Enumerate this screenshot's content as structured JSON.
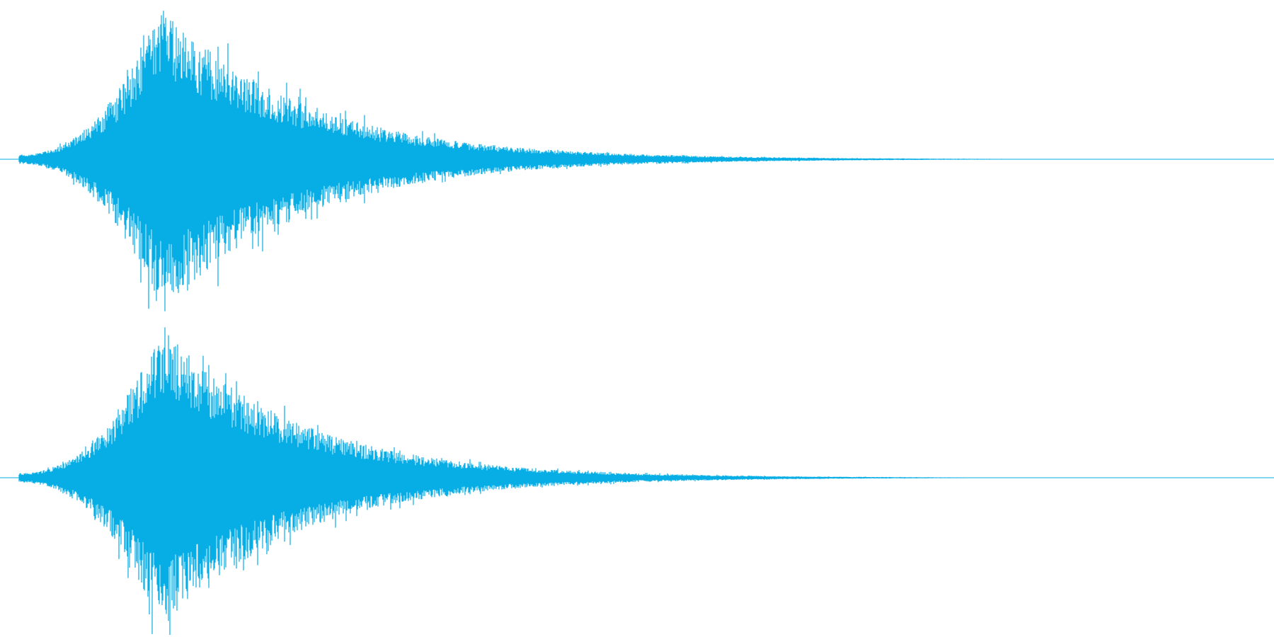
{
  "waveform": {
    "color": "#06aee5",
    "background": "#ffffff",
    "channels": [
      {
        "name": "channel-1",
        "peak_position": 0.13,
        "peak_amplitude": 1.0,
        "attack_start": 0.015,
        "decay_end": 0.83
      },
      {
        "name": "channel-2",
        "peak_position": 0.13,
        "peak_amplitude": 1.0,
        "attack_start": 0.015,
        "decay_end": 0.8
      }
    ]
  }
}
